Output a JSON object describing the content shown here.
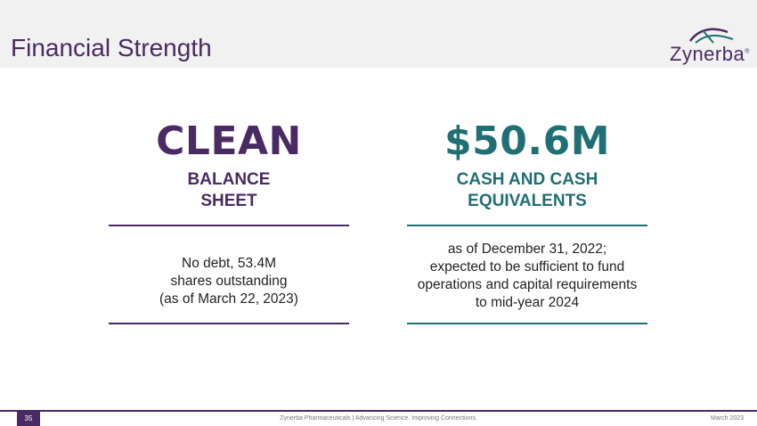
{
  "header": {
    "title": "Financial Strength",
    "logo_text": "Zynerba",
    "logo_mark": "®"
  },
  "left": {
    "headline": "CLEAN",
    "subtitle_line1": "BALANCE",
    "subtitle_line2": "SHEET",
    "body_lines": [
      "No debt, 53.4M",
      "shares outstanding",
      "(as of March 22, 2023)"
    ]
  },
  "right": {
    "headline": "$50.6M",
    "subtitle_line1": "CASH AND CASH",
    "subtitle_line2": "EQUIVALENTS",
    "body_lines": [
      "as of December 31, 2022;",
      "expected to be sufficient to fund",
      "operations and capital requirements",
      "to mid-year 2024"
    ]
  },
  "footer": {
    "page_number": "35",
    "center_text": "Zynerba Pharmaceuticals  |  Advancing Science. Improving Connections.",
    "date": "March 2023"
  },
  "colors": {
    "purple": "#4a2a63",
    "teal": "#1f6f73"
  }
}
